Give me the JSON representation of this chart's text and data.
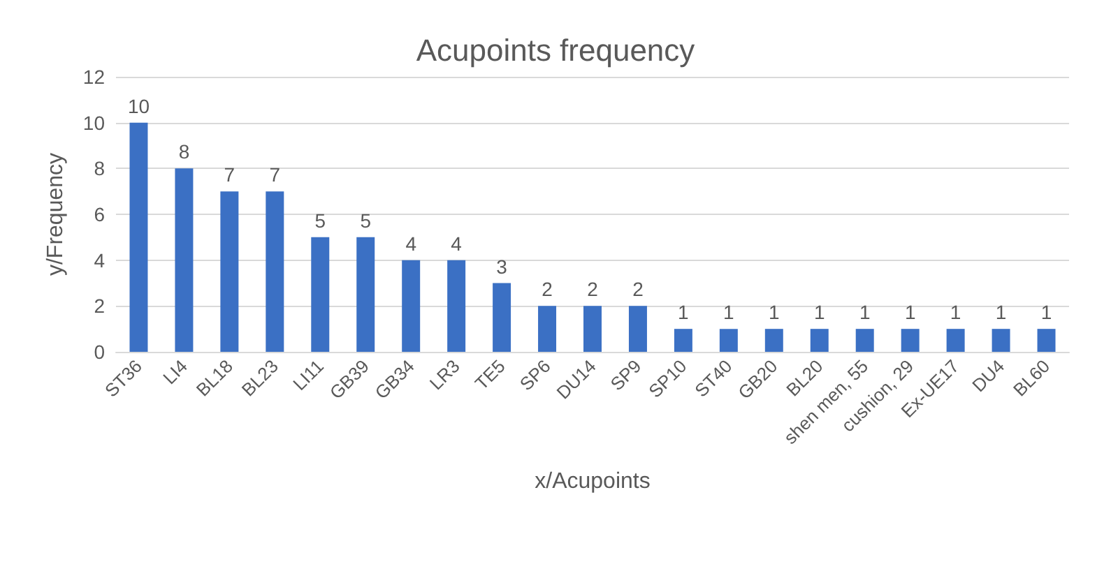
{
  "chart_data": {
    "type": "bar",
    "title": "Acupoints frequency",
    "xlabel": "x/Acupoints",
    "ylabel": "y/Frequency",
    "categories": [
      "ST36",
      "LI4",
      "BL18",
      "BL23",
      "LI11",
      "GB39",
      "GB34",
      "LR3",
      "TE5",
      "SP6",
      "DU14",
      "SP9",
      "SP10",
      "ST40",
      "GB20",
      "BL20",
      "shen men, 55",
      "cushion, 29",
      "Ex-UE17",
      "DU4",
      "BL60"
    ],
    "values": [
      10,
      8,
      7,
      7,
      5,
      5,
      4,
      4,
      3,
      2,
      2,
      2,
      1,
      1,
      1,
      1,
      1,
      1,
      1,
      1,
      1
    ],
    "color": "#3b70c4",
    "ylim": [
      0,
      12
    ],
    "yticks": [
      0,
      2,
      4,
      6,
      8,
      10,
      12
    ],
    "grid": "y",
    "data_labels": true
  }
}
